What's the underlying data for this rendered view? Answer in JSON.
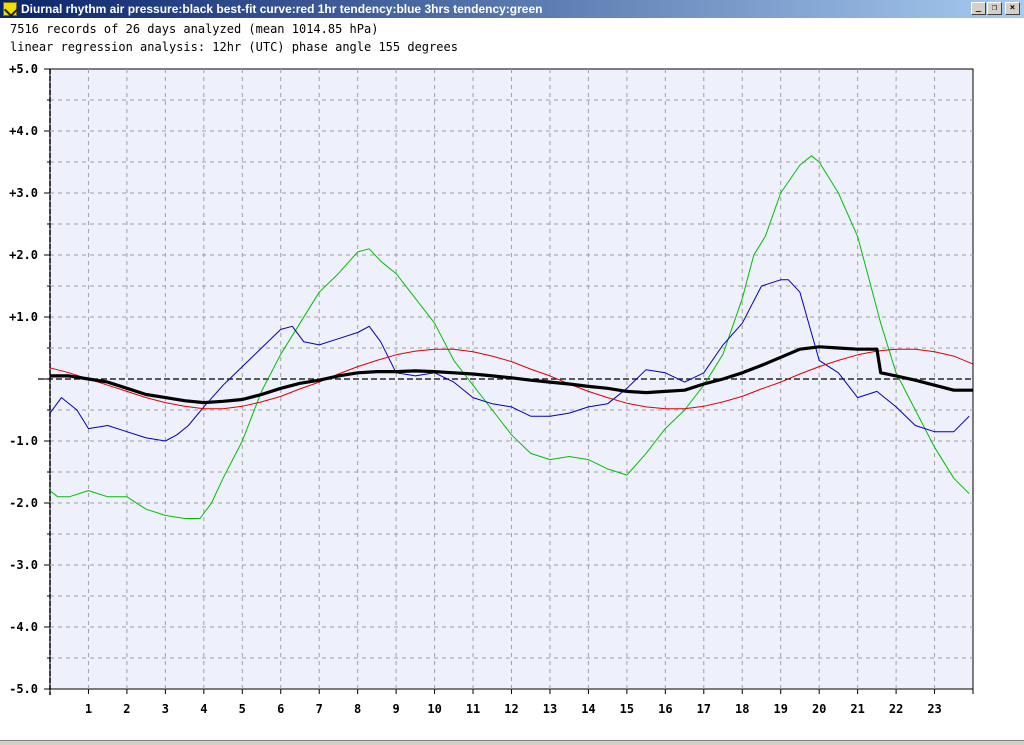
{
  "window": {
    "title": "Diurnal rhythm air pressure:black best-fit curve:red 1hr tendency:blue 3hrs tendency:green",
    "minimize_glyph": "_",
    "restore_glyph": "❐",
    "close_glyph": "×"
  },
  "info": {
    "line1": "7516 records of 26 days analyzed (mean 1014.85 hPa)",
    "line2": "linear regression analysis: 12hr (UTC) phase angle 155 degrees"
  },
  "colors": {
    "plot_bg": "#eef0fc",
    "grid": "#a0a0a0",
    "pressure": "#000000",
    "best_fit": "#e00000",
    "tendency_1hr": "#0000c0",
    "tendency_3hr": "#00c000"
  },
  "chart_data": {
    "type": "line",
    "title": "",
    "xlabel": "",
    "ylabel": "",
    "xlim": [
      0,
      24
    ],
    "ylim": [
      -5,
      5
    ],
    "x_ticks": [
      1,
      2,
      3,
      4,
      5,
      6,
      7,
      8,
      9,
      10,
      11,
      12,
      13,
      14,
      15,
      16,
      17,
      18,
      19,
      20,
      21,
      22,
      23
    ],
    "y_ticks": [
      {
        "value": 5,
        "label": "+5.0"
      },
      {
        "value": 4,
        "label": "+4.0"
      },
      {
        "value": 3,
        "label": "+3.0"
      },
      {
        "value": 2,
        "label": "+2.0"
      },
      {
        "value": 1,
        "label": "+1.0"
      },
      {
        "value": -1,
        "label": "-1.0"
      },
      {
        "value": -2,
        "label": "-2.0"
      },
      {
        "value": -3,
        "label": "-3.0"
      },
      {
        "value": -4,
        "label": "-4.0"
      },
      {
        "value": -5,
        "label": "-5.0"
      }
    ],
    "grid": true,
    "zero_line": true,
    "series": [
      {
        "key": "pressure",
        "color": "#000000",
        "x": [
          0,
          0.5,
          1,
          1.5,
          2,
          2.5,
          3,
          3.5,
          4,
          4.5,
          5,
          5.5,
          6,
          6.5,
          7,
          7.5,
          8,
          8.5,
          9,
          9.5,
          10,
          10.5,
          11,
          11.5,
          12,
          12.5,
          13,
          13.5,
          14,
          14.5,
          15,
          15.5,
          16,
          16.5,
          17,
          17.5,
          18,
          18.5,
          19,
          19.5,
          20,
          20.5,
          21,
          21.5,
          21.6,
          22,
          22.5,
          23,
          23.5,
          24
        ],
        "y": [
          0.05,
          0.05,
          0.0,
          -0.05,
          -0.15,
          -0.25,
          -0.3,
          -0.35,
          -0.38,
          -0.36,
          -0.33,
          -0.25,
          -0.15,
          -0.07,
          -0.02,
          0.05,
          0.1,
          0.12,
          0.12,
          0.13,
          0.12,
          0.1,
          0.08,
          0.05,
          0.02,
          -0.02,
          -0.05,
          -0.08,
          -0.12,
          -0.15,
          -0.2,
          -0.22,
          -0.2,
          -0.18,
          -0.08,
          0.0,
          0.1,
          0.22,
          0.35,
          0.48,
          0.52,
          0.5,
          0.48,
          0.48,
          0.1,
          0.05,
          -0.02,
          -0.1,
          -0.18,
          -0.18
        ]
      },
      {
        "key": "best_fit",
        "color": "#e00000",
        "x": [
          0,
          0.5,
          1,
          1.5,
          2,
          2.5,
          3,
          3.5,
          4,
          4.5,
          5,
          5.5,
          6,
          6.5,
          7,
          7.5,
          8,
          8.5,
          9,
          9.5,
          10,
          10.5,
          11,
          11.5,
          12,
          12.5,
          13,
          13.5,
          14,
          14.5,
          15,
          15.5,
          16,
          16.5,
          17,
          17.5,
          18,
          18.5,
          19,
          19.5,
          20,
          20.5,
          21,
          21.5,
          22,
          22.5,
          23,
          23.5,
          24
        ],
        "y": [
          0.18,
          0.1,
          0.0,
          -0.1,
          -0.2,
          -0.3,
          -0.38,
          -0.44,
          -0.48,
          -0.48,
          -0.44,
          -0.37,
          -0.28,
          -0.16,
          -0.05,
          0.08,
          0.2,
          0.3,
          0.39,
          0.45,
          0.48,
          0.48,
          0.44,
          0.37,
          0.28,
          0.16,
          0.05,
          -0.08,
          -0.2,
          -0.3,
          -0.39,
          -0.45,
          -0.48,
          -0.48,
          -0.44,
          -0.37,
          -0.28,
          -0.16,
          -0.05,
          0.08,
          0.2,
          0.3,
          0.39,
          0.45,
          0.48,
          0.48,
          0.44,
          0.37,
          0.24
        ]
      },
      {
        "key": "tendency_1hr",
        "color": "#0000c0",
        "x": [
          0,
          0.3,
          0.7,
          1,
          1.5,
          2,
          2.5,
          3,
          3.3,
          3.6,
          4,
          4.5,
          5,
          5.5,
          6,
          6.3,
          6.6,
          7,
          7.5,
          8,
          8.3,
          8.6,
          9,
          9.5,
          10,
          10.5,
          11,
          11.5,
          12,
          12.5,
          13,
          13.5,
          14,
          14.5,
          15,
          15.5,
          16,
          16.5,
          17,
          17.5,
          18,
          18.5,
          19,
          19.2,
          19.5,
          20,
          20.5,
          21,
          21.5,
          22,
          22.5,
          23,
          23.5,
          23.9
        ],
        "y": [
          -0.55,
          -0.3,
          -0.5,
          -0.8,
          -0.75,
          -0.85,
          -0.95,
          -1.0,
          -0.9,
          -0.75,
          -0.45,
          -0.1,
          0.2,
          0.5,
          0.8,
          0.85,
          0.6,
          0.55,
          0.65,
          0.75,
          0.85,
          0.6,
          0.1,
          0.05,
          0.1,
          -0.05,
          -0.3,
          -0.4,
          -0.45,
          -0.6,
          -0.6,
          -0.55,
          -0.45,
          -0.4,
          -0.15,
          0.15,
          0.1,
          -0.05,
          0.1,
          0.55,
          0.9,
          1.5,
          1.6,
          1.6,
          1.4,
          0.3,
          0.1,
          -0.3,
          -0.2,
          -0.45,
          -0.75,
          -0.85,
          -0.85,
          -0.6
        ]
      },
      {
        "key": "tendency_3hr",
        "color": "#00c000",
        "x": [
          0,
          0.2,
          0.5,
          1,
          1.5,
          2,
          2.5,
          3,
          3.5,
          3.9,
          4.2,
          4.5,
          5,
          5.5,
          6,
          6.5,
          7,
          7.5,
          8,
          8.3,
          8.6,
          9,
          9.5,
          10,
          10.5,
          11,
          11.5,
          12,
          12.5,
          13,
          13.5,
          14,
          14.5,
          15,
          15.5,
          16,
          16.5,
          17,
          17.5,
          18,
          18.3,
          18.6,
          19,
          19.5,
          19.8,
          20,
          20.5,
          21,
          21.3,
          21.6,
          22,
          22.5,
          23,
          23.5,
          23.9
        ],
        "y": [
          -1.8,
          -1.9,
          -1.9,
          -1.8,
          -1.9,
          -1.9,
          -2.1,
          -2.2,
          -2.25,
          -2.25,
          -2.0,
          -1.6,
          -1.0,
          -0.2,
          0.4,
          0.9,
          1.4,
          1.7,
          2.05,
          2.1,
          1.9,
          1.7,
          1.3,
          0.9,
          0.3,
          -0.1,
          -0.5,
          -0.9,
          -1.2,
          -1.3,
          -1.25,
          -1.3,
          -1.45,
          -1.55,
          -1.2,
          -0.8,
          -0.5,
          -0.1,
          0.4,
          1.3,
          2.0,
          2.3,
          3.0,
          3.45,
          3.6,
          3.5,
          3.0,
          2.3,
          1.6,
          0.9,
          0.1,
          -0.5,
          -1.1,
          -1.6,
          -1.85
        ]
      }
    ]
  }
}
